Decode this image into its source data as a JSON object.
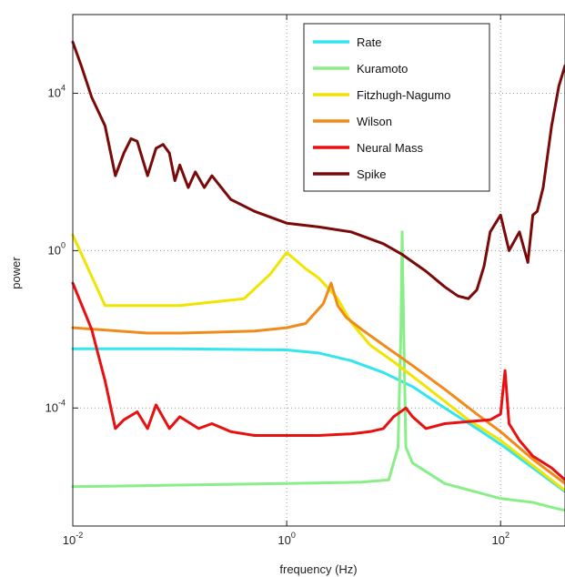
{
  "chart_data": {
    "type": "line",
    "title": "",
    "xlabel": "frequency (Hz)",
    "ylabel": "power",
    "x_scale": "log",
    "y_scale": "log",
    "xlim": [
      0.01,
      400
    ],
    "ylim": [
      1e-07,
      1000000.0
    ],
    "x_ticks": [
      {
        "value": 0.01,
        "base": "10",
        "exp": "-2"
      },
      {
        "value": 1,
        "base": "10",
        "exp": "0"
      },
      {
        "value": 100,
        "base": "10",
        "exp": "2"
      }
    ],
    "y_ticks": [
      {
        "value": 0.0001,
        "base": "10",
        "exp": "-4"
      },
      {
        "value": 1,
        "base": "10",
        "exp": "0"
      },
      {
        "value": 10000,
        "base": "10",
        "exp": "4"
      }
    ],
    "grid": "dotted",
    "legend_position": "top-right",
    "series": [
      {
        "name": "Rate",
        "color": "#33e5ee",
        "x": [
          0.01,
          0.1,
          1,
          2,
          4,
          8,
          15,
          30,
          60,
          100,
          200,
          400
        ],
        "y": [
          0.0032,
          0.0032,
          0.003,
          0.0025,
          0.0016,
          0.0008,
          0.00035,
          0.0001,
          3e-05,
          1.2e-05,
          3e-06,
          7.5e-07
        ]
      },
      {
        "name": "Kuramoto",
        "color": "#88ee88",
        "x": [
          0.01,
          0.1,
          1,
          5,
          9,
          11,
          11.7,
          12,
          12.4,
          13,
          15,
          30,
          100,
          200,
          300,
          400
        ],
        "y": [
          1e-06,
          1.1e-06,
          1.2e-06,
          1.3e-06,
          1.5e-06,
          1e-05,
          0.01,
          3,
          0.01,
          1e-05,
          4e-06,
          1.2e-06,
          5e-07,
          4e-07,
          3e-07,
          2.5e-07
        ]
      },
      {
        "name": "Fitzhugh-Nagumo",
        "color": "#f0e400",
        "x": [
          0.01,
          0.02,
          0.1,
          0.4,
          0.7,
          1,
          1.5,
          2,
          3,
          4,
          6,
          10,
          20,
          50,
          100,
          400
        ],
        "y": [
          2.5,
          0.04,
          0.04,
          0.06,
          0.25,
          0.9,
          0.35,
          0.2,
          0.06,
          0.015,
          0.004,
          0.0015,
          0.00035,
          5e-05,
          1.5e-05,
          8e-07
        ]
      },
      {
        "name": "Wilson",
        "color": "#f08a1a",
        "x": [
          0.01,
          0.05,
          0.1,
          0.5,
          1,
          1.5,
          2.2,
          2.6,
          3,
          3.6,
          5,
          8,
          15,
          30,
          60,
          100,
          200,
          400
        ],
        "y": [
          0.011,
          0.008,
          0.008,
          0.009,
          0.011,
          0.014,
          0.045,
          0.15,
          0.04,
          0.02,
          0.01,
          0.004,
          0.0012,
          0.0003,
          7e-05,
          2.5e-05,
          5e-06,
          1.2e-06
        ]
      },
      {
        "name": "Neural Mass",
        "color": "#e81010",
        "x": [
          0.01,
          0.015,
          0.02,
          0.025,
          0.03,
          0.04,
          0.05,
          0.06,
          0.08,
          0.1,
          0.15,
          0.2,
          0.3,
          0.5,
          1,
          2,
          4,
          6,
          8,
          10,
          13,
          15,
          20,
          30,
          50,
          80,
          100,
          110,
          120,
          150,
          200,
          300,
          400
        ],
        "y": [
          0.15,
          0.01,
          0.0005,
          3e-05,
          5e-05,
          8e-05,
          3e-05,
          0.00012,
          3e-05,
          6e-05,
          3e-05,
          4e-05,
          2.5e-05,
          2e-05,
          2e-05,
          2e-05,
          2.2e-05,
          2.5e-05,
          3e-05,
          6e-05,
          0.0001,
          6e-05,
          3e-05,
          4e-05,
          4.5e-05,
          5e-05,
          7e-05,
          0.0009,
          4e-05,
          1.5e-05,
          6e-06,
          3e-06,
          1.5e-06
        ]
      },
      {
        "name": "Spike",
        "color": "#7a0a0a",
        "x": [
          0.01,
          0.012,
          0.015,
          0.02,
          0.025,
          0.03,
          0.035,
          0.04,
          0.05,
          0.06,
          0.07,
          0.08,
          0.09,
          0.1,
          0.12,
          0.14,
          0.17,
          0.2,
          0.3,
          0.5,
          1,
          2,
          4,
          8,
          12,
          20,
          30,
          40,
          50,
          60,
          70,
          80,
          100,
          120,
          150,
          180,
          200,
          220,
          250,
          300,
          350,
          400
        ],
        "y": [
          200000,
          50000,
          8000,
          1500,
          80,
          300,
          700,
          600,
          80,
          400,
          500,
          300,
          60,
          150,
          40,
          100,
          40,
          80,
          20,
          10,
          5,
          4,
          3,
          1.5,
          0.8,
          0.3,
          0.12,
          0.07,
          0.06,
          0.1,
          0.4,
          3,
          8,
          1,
          3,
          0.5,
          8,
          10,
          40,
          1500,
          15000,
          50000
        ]
      }
    ]
  }
}
